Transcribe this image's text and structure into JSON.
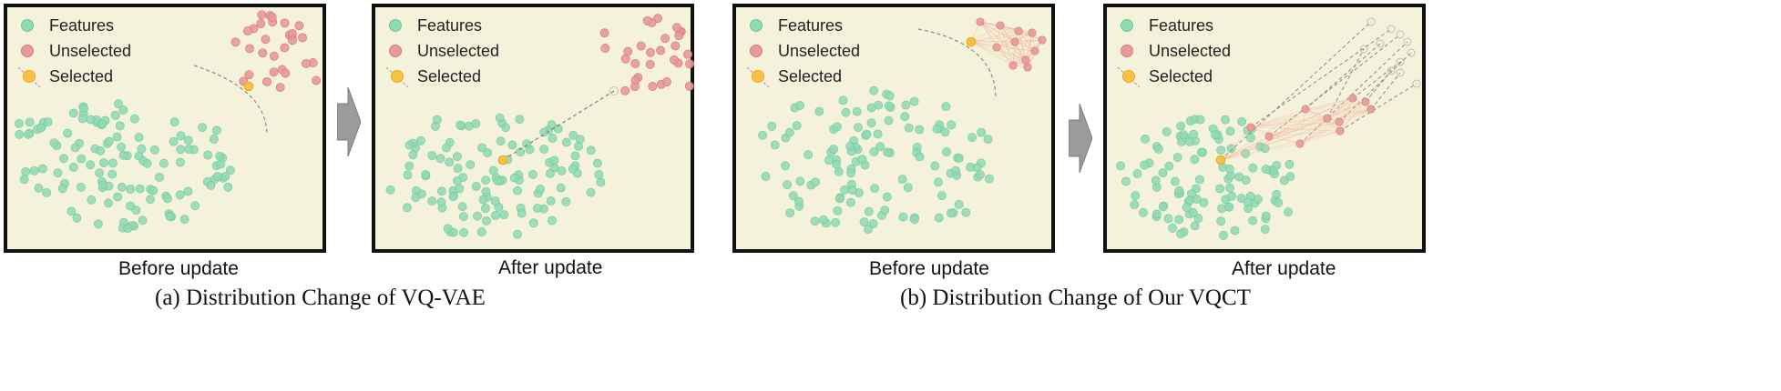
{
  "legend": {
    "features": "Features",
    "unselected": "Unselected",
    "selected": "Selected"
  },
  "colors": {
    "feature": "#8fd9b4",
    "feature_stroke": "#6cc79b",
    "unselected": "#e79a97",
    "unselected_stroke": "#d97b78",
    "selected": "#f7c244",
    "selected_stroke": "#e8a81c",
    "background": "#f5f2dc",
    "arrow": "#9b9b9b"
  },
  "panels": [
    {
      "caption": "Before update"
    },
    {
      "caption": "After update"
    },
    {
      "caption": "Before update"
    },
    {
      "caption": "After update"
    }
  ],
  "subcaptions": {
    "a": "(a) Distribution Change of VQ-VAE",
    "b": "(b) Distribution Change of Our VQCT"
  }
}
